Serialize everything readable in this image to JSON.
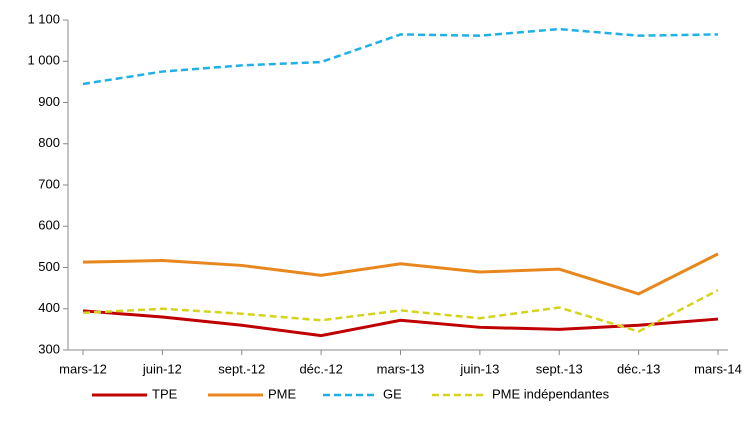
{
  "chart_data": {
    "type": "line",
    "categories": [
      "mars-12",
      "juin-12",
      "sept.-12",
      "déc.-12",
      "mars-13",
      "juin-13",
      "sept.-13",
      "déc.-13",
      "mars-14"
    ],
    "series": [
      {
        "name": "TPE",
        "color": "#c00000",
        "dashed": false,
        "values": [
          395,
          380,
          360,
          335,
          372,
          355,
          350,
          360,
          375
        ]
      },
      {
        "name": "PME",
        "color": "#e8871e",
        "dashed": false,
        "values": [
          513,
          517,
          505,
          481,
          509,
          489,
          496,
          436,
          533
        ]
      },
      {
        "name": "GE",
        "color": "#1fb1e6",
        "dashed": true,
        "values": [
          945,
          975,
          990,
          998,
          1065,
          1062,
          1078,
          1062,
          1065
        ]
      },
      {
        "name": "PME indépendantes",
        "color": "#d4d41c",
        "dashed": true,
        "values": [
          390,
          400,
          388,
          372,
          396,
          377,
          403,
          345,
          445
        ]
      }
    ],
    "ylim": [
      300,
      1100
    ],
    "yticks": [
      300,
      400,
      500,
      600,
      700,
      800,
      900,
      {
        "value": 1000,
        "label": "1 000"
      },
      {
        "value": 1100,
        "label": "1 100"
      }
    ],
    "grid": false,
    "legend": "bottom"
  }
}
